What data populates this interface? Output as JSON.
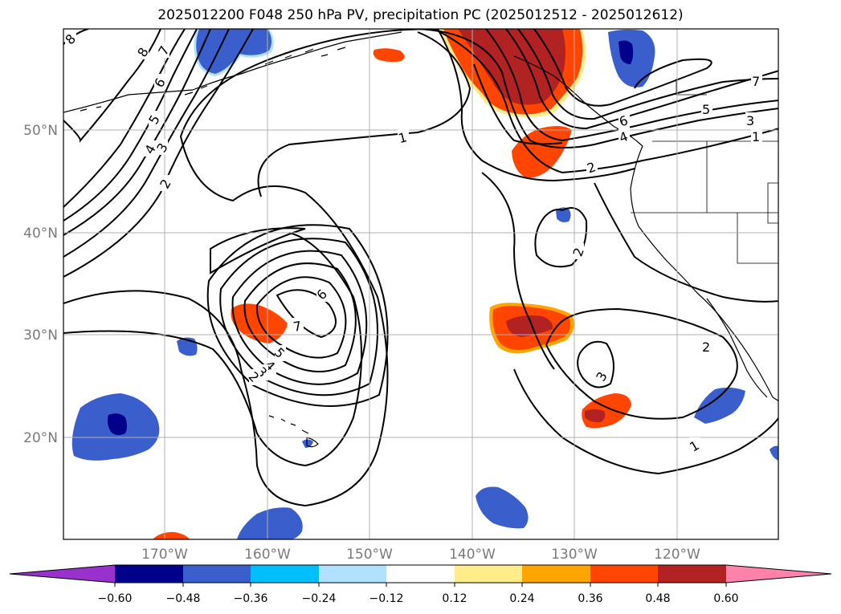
{
  "title": "2025012200 F048 250 hPa PV, precipitation PC (2025012512 - 2025012612)",
  "lat_labels": [
    "50°N",
    "40°N",
    "30°N",
    "20°N"
  ],
  "lon_labels": [
    "170°W",
    "160°W",
    "150°W",
    "140°W",
    "130°W",
    "120°W"
  ],
  "contour_labels": [
    "8",
    "7",
    "6",
    "5",
    "4",
    "3",
    "2",
    "1",
    "1",
    "2",
    "2",
    "7",
    "5",
    "3",
    "1",
    "6",
    "4",
    "7",
    "6",
    "5",
    "4",
    "3",
    "2",
    "3",
    "2",
    "1"
  ],
  "colorbar": {
    "ticks": [
      "−0.60",
      "−0.48",
      "−0.36",
      "−0.24",
      "−0.12",
      "0.12",
      "0.24",
      "0.36",
      "0.48",
      "0.60"
    ],
    "colors": [
      "#9932cc",
      "#00008b",
      "#3a5fcd",
      "#00bfff",
      "#b0e2ff",
      "#ffffff",
      "#ffec8b",
      "#ffa500",
      "#ff4500",
      "#b22222",
      "#ff82ab"
    ]
  },
  "colors": {
    "frame": "#000000",
    "grid": "#b0b0b0",
    "axis_text": "#7a7a7a"
  }
}
